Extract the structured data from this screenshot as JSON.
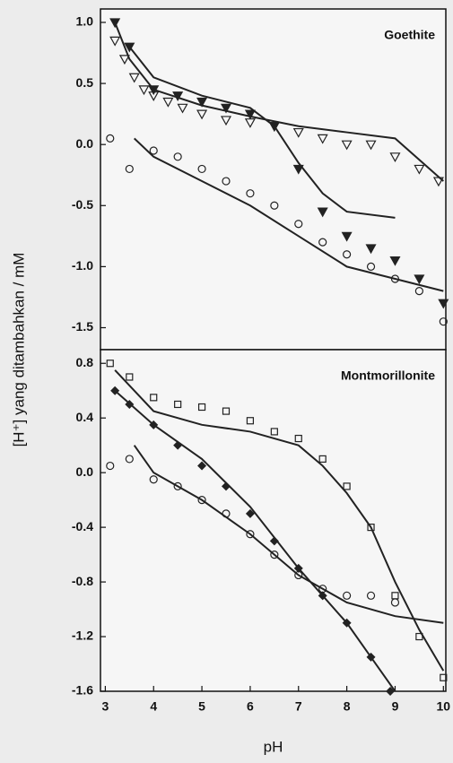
{
  "y_label": "[H⁺] yang ditambahkan / mM",
  "chart_data": [
    {
      "type": "scatter",
      "annotation": "Goethite",
      "xlim": [
        2.9,
        10.05
      ],
      "ylim": [
        -1.68,
        1.11
      ],
      "yticks": [
        {
          "value": 1.0,
          "label": "1.0"
        },
        0.5,
        {
          "value": 0,
          "label": "0.0"
        },
        -0.5,
        {
          "value": -1.0,
          "label": "-1.0"
        },
        -1.5
      ],
      "series": [
        {
          "marker": "triangle-open",
          "color": "#222222",
          "x": [
            3.2,
            3.4,
            3.6,
            3.8,
            4.0,
            4.3,
            4.6,
            5.0,
            5.5,
            6.0,
            6.5,
            7.0,
            7.5,
            8.0,
            8.5,
            9.0,
            9.5,
            9.9
          ],
          "values": [
            0.85,
            0.7,
            0.55,
            0.45,
            0.4,
            0.35,
            0.3,
            0.25,
            0.2,
            0.18,
            0.15,
            0.1,
            0.05,
            0.0,
            0.0,
            -0.1,
            -0.2,
            -0.3
          ]
        },
        {
          "marker": "triangle-filled",
          "color": "#222222",
          "x": [
            3.2,
            3.5,
            4.0,
            4.5,
            5.0,
            5.5,
            6.0,
            6.5,
            7.0,
            7.5,
            8.0,
            8.5,
            9.0,
            9.5,
            10.0
          ],
          "values": [
            1.0,
            0.8,
            0.45,
            0.4,
            0.35,
            0.3,
            0.25,
            0.15,
            -0.2,
            -0.55,
            -0.75,
            -0.85,
            -0.95,
            -1.1,
            -1.3
          ]
        },
        {
          "marker": "circle-open",
          "color": "#222222",
          "x": [
            3.1,
            3.5,
            4.0,
            4.5,
            5.0,
            5.5,
            6.0,
            6.5,
            7.0,
            7.5,
            8.0,
            8.5,
            9.0,
            9.5,
            10.0
          ],
          "values": [
            0.05,
            -0.2,
            -0.05,
            -0.1,
            -0.2,
            -0.3,
            -0.4,
            -0.5,
            -0.65,
            -0.8,
            -0.9,
            -1.0,
            -1.1,
            -1.2,
            -1.45
          ]
        },
        {
          "marker": "line",
          "color": "#222222",
          "x": [
            3.2,
            3.5,
            4.0,
            5.0,
            6.0,
            7.0,
            8.0,
            9.0,
            10.0
          ],
          "values": [
            1.0,
            0.7,
            0.45,
            0.32,
            0.23,
            0.15,
            0.1,
            0.05,
            -0.3
          ]
        },
        {
          "marker": "line",
          "color": "#222222",
          "x": [
            3.5,
            4.0,
            5.0,
            6.0,
            6.5,
            7.0,
            7.5,
            8.0,
            9.0
          ],
          "values": [
            0.8,
            0.55,
            0.4,
            0.3,
            0.15,
            -0.15,
            -0.4,
            -0.55,
            -0.6
          ]
        },
        {
          "marker": "line",
          "color": "#222222",
          "x": [
            3.6,
            4.0,
            5.0,
            6.0,
            7.0,
            8.0,
            9.0,
            10.0
          ],
          "values": [
            0.05,
            -0.1,
            -0.3,
            -0.5,
            -0.75,
            -1.0,
            -1.1,
            -1.2
          ]
        }
      ]
    },
    {
      "type": "scatter",
      "annotation": "Montmorillonite",
      "x_label": "pH",
      "xlim": [
        2.9,
        10.05
      ],
      "ylim": [
        -1.6,
        0.9
      ],
      "xticks": [
        3,
        4,
        5,
        6,
        7,
        8,
        9,
        10
      ],
      "yticks": [
        0.8,
        0.4,
        {
          "value": 0,
          "label": "0.0"
        },
        -0.4,
        -0.8,
        -1.2,
        -1.6
      ],
      "series": [
        {
          "marker": "square-open",
          "color": "#222222",
          "x": [
            3.1,
            3.5,
            4.0,
            4.5,
            5.0,
            5.5,
            6.0,
            6.5,
            7.0,
            7.5,
            8.0,
            8.5,
            9.0,
            9.5,
            10.0
          ],
          "values": [
            0.8,
            0.7,
            0.55,
            0.5,
            0.48,
            0.45,
            0.38,
            0.3,
            0.25,
            0.1,
            -0.1,
            -0.4,
            -0.9,
            -1.2,
            -1.5
          ]
        },
        {
          "marker": "diamond-filled",
          "color": "#222222",
          "x": [
            3.2,
            3.5,
            4.0,
            4.5,
            5.0,
            5.5,
            6.0,
            6.5,
            7.0,
            7.5,
            8.0,
            8.5,
            8.9
          ],
          "values": [
            0.6,
            0.5,
            0.35,
            0.2,
            0.05,
            -0.1,
            -0.3,
            -0.5,
            -0.7,
            -0.9,
            -1.1,
            -1.35,
            -1.6
          ]
        },
        {
          "marker": "circle-open",
          "color": "#222222",
          "x": [
            3.1,
            3.5,
            4.0,
            4.5,
            5.0,
            5.5,
            6.0,
            6.5,
            7.0,
            7.5,
            8.0,
            8.5,
            9.0
          ],
          "values": [
            0.05,
            0.1,
            -0.05,
            -0.1,
            -0.2,
            -0.3,
            -0.45,
            -0.6,
            -0.75,
            -0.85,
            -0.9,
            -0.9,
            -0.95
          ]
        },
        {
          "marker": "line",
          "color": "#222222",
          "x": [
            3.2,
            4.0,
            5.0,
            6.0,
            7.0,
            7.5,
            8.0,
            8.5,
            9.0,
            9.5,
            10.0
          ],
          "values": [
            0.75,
            0.45,
            0.35,
            0.3,
            0.2,
            0.05,
            -0.15,
            -0.4,
            -0.8,
            -1.15,
            -1.45
          ]
        },
        {
          "marker": "line",
          "color": "#222222",
          "x": [
            3.6,
            4.0,
            5.0,
            6.0,
            7.0,
            8.0,
            9.0,
            10.0
          ],
          "values": [
            0.2,
            0.0,
            -0.2,
            -0.45,
            -0.75,
            -0.95,
            -1.05,
            -1.1
          ]
        },
        {
          "marker": "line",
          "color": "#222222",
          "x": [
            3.2,
            4.0,
            5.0,
            6.0,
            7.0,
            8.0,
            8.5,
            9.0
          ],
          "values": [
            0.6,
            0.35,
            0.1,
            -0.25,
            -0.7,
            -1.1,
            -1.35,
            -1.6
          ]
        }
      ]
    }
  ]
}
